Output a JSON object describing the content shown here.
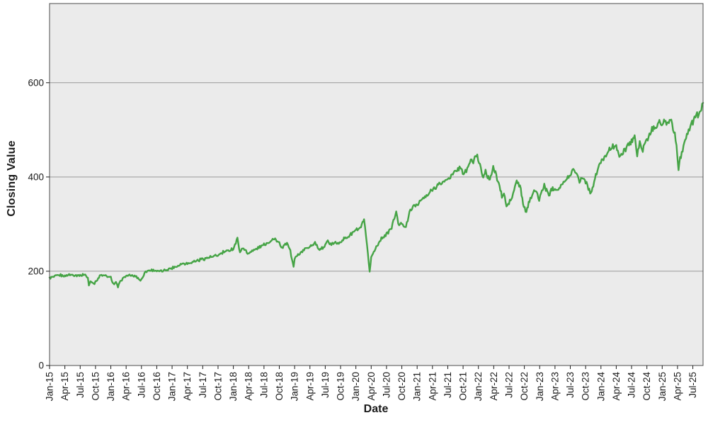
{
  "labels": {
    "x_axis_title": "Date",
    "y_axis_title": "Closing Value"
  },
  "colors": {
    "outer_bg": "#ffffff",
    "plot_bg": "#ebebeb",
    "gridline": "#9a9a9a",
    "plot_border": "#4d4d4d",
    "tick": "#1a1a1a",
    "text": "#1a1a1a",
    "line": "#46a446"
  },
  "chart_data": {
    "type": "line",
    "title": "",
    "xlabel": "Date",
    "ylabel": "Closing Value",
    "grid": "horizontal gridlines at y ticks, light gray plot background",
    "legend": "none",
    "ylim": [
      0,
      768
    ],
    "y_ticks": [
      0,
      200,
      400,
      600
    ],
    "x_months_range": [
      0,
      128
    ],
    "x_tick_every_months": 3,
    "x_tick_labels": [
      "Jan-15",
      "Apr-15",
      "Jul-15",
      "Oct-15",
      "Jan-16",
      "Apr-16",
      "Jul-16",
      "Oct-16",
      "Jan-17",
      "Apr-17",
      "Jul-17",
      "Oct-17",
      "Jan-18",
      "Apr-18",
      "Jul-18",
      "Oct-18",
      "Jan-19",
      "Apr-19",
      "Jul-19",
      "Oct-19",
      "Jan-20",
      "Apr-20",
      "Jul-20",
      "Oct-20",
      "Jan-21",
      "Apr-21",
      "Jul-21",
      "Oct-21",
      "Jan-22",
      "Apr-22",
      "Jul-22",
      "Oct-22",
      "Jan-23",
      "Apr-23",
      "Jul-23",
      "Oct-23",
      "Jan-24",
      "Apr-24",
      "Jul-24",
      "Oct-24",
      "Jan-25",
      "Apr-25",
      "Jul-25"
    ],
    "series": [
      {
        "name": "Closing Value",
        "color": "#46a446",
        "points_format": "[months_since_Jan2015, closing_value]",
        "points": [
          [
            0,
            186
          ],
          [
            1,
            189
          ],
          [
            2,
            192
          ],
          [
            3,
            190
          ],
          [
            4,
            193
          ],
          [
            5,
            192
          ],
          [
            6,
            191
          ],
          [
            7,
            193
          ],
          [
            7.5,
            185
          ],
          [
            7.7,
            170
          ],
          [
            8,
            179
          ],
          [
            8.8,
            174
          ],
          [
            9.2,
            180
          ],
          [
            10,
            192
          ],
          [
            11,
            190
          ],
          [
            12,
            186
          ],
          [
            12.5,
            173
          ],
          [
            13,
            175
          ],
          [
            13.4,
            167
          ],
          [
            14,
            181
          ],
          [
            15,
            190
          ],
          [
            16,
            191
          ],
          [
            17,
            189
          ],
          [
            17.8,
            180
          ],
          [
            18.3,
            188
          ],
          [
            18.6,
            198
          ],
          [
            19,
            200
          ],
          [
            20,
            203
          ],
          [
            21,
            201
          ],
          [
            22,
            199
          ],
          [
            23,
            204
          ],
          [
            24,
            207
          ],
          [
            25,
            211
          ],
          [
            26,
            216
          ],
          [
            27,
            217
          ],
          [
            28,
            220
          ],
          [
            29,
            223
          ],
          [
            30,
            226
          ],
          [
            31,
            228
          ],
          [
            32,
            231
          ],
          [
            33,
            234
          ],
          [
            34,
            240
          ],
          [
            35,
            244
          ],
          [
            36,
            248
          ],
          [
            36.8,
            268
          ],
          [
            37.3,
            242
          ],
          [
            38,
            250
          ],
          [
            38.8,
            238
          ],
          [
            39.5,
            242
          ],
          [
            40,
            245
          ],
          [
            41,
            250
          ],
          [
            42,
            256
          ],
          [
            43,
            262
          ],
          [
            43.7,
            269
          ],
          [
            44.5,
            266
          ],
          [
            45,
            260
          ],
          [
            45.4,
            248
          ],
          [
            46,
            255
          ],
          [
            46.5,
            258
          ],
          [
            47,
            250
          ],
          [
            47.8,
            209
          ],
          [
            48,
            228
          ],
          [
            49,
            238
          ],
          [
            50,
            247
          ],
          [
            51,
            253
          ],
          [
            52,
            260
          ],
          [
            52.9,
            243
          ],
          [
            53.5,
            250
          ],
          [
            54,
            258
          ],
          [
            54.5,
            264
          ],
          [
            55.2,
            254
          ],
          [
            55.6,
            260
          ],
          [
            56,
            262
          ],
          [
            56.3,
            256
          ],
          [
            57,
            264
          ],
          [
            58,
            270
          ],
          [
            59,
            278
          ],
          [
            60,
            287
          ],
          [
            61,
            292
          ],
          [
            61.6,
            310
          ],
          [
            62,
            270
          ],
          [
            62.7,
            200
          ],
          [
            63,
            230
          ],
          [
            64,
            252
          ],
          [
            65,
            270
          ],
          [
            66,
            278
          ],
          [
            67,
            292
          ],
          [
            67.9,
            326
          ],
          [
            68.3,
            298
          ],
          [
            69,
            302
          ],
          [
            69.8,
            293
          ],
          [
            70.5,
            325
          ],
          [
            71,
            335
          ],
          [
            72,
            342
          ],
          [
            73,
            352
          ],
          [
            74,
            360
          ],
          [
            75,
            374
          ],
          [
            76,
            382
          ],
          [
            77,
            388
          ],
          [
            78,
            396
          ],
          [
            79,
            406
          ],
          [
            80,
            416
          ],
          [
            80.6,
            421
          ],
          [
            81.1,
            403
          ],
          [
            82,
            422
          ],
          [
            82.5,
            437
          ],
          [
            83,
            430
          ],
          [
            83.6,
            448
          ],
          [
            84.3,
            428
          ],
          [
            84.8,
            402
          ],
          [
            85.4,
            412
          ],
          [
            85.8,
            395
          ],
          [
            86.4,
            400
          ],
          [
            86.9,
            418
          ],
          [
            87.5,
            405
          ],
          [
            88,
            385
          ],
          [
            88.6,
            360
          ],
          [
            89,
            365
          ],
          [
            89.5,
            337
          ],
          [
            90,
            345
          ],
          [
            90.6,
            355
          ],
          [
            91,
            372
          ],
          [
            91.5,
            394
          ],
          [
            92.3,
            372
          ],
          [
            92.9,
            335
          ],
          [
            93.4,
            327
          ],
          [
            94,
            350
          ],
          [
            94.9,
            373
          ],
          [
            95.4,
            365
          ],
          [
            95.9,
            352
          ],
          [
            96.3,
            365
          ],
          [
            96.9,
            382
          ],
          [
            97.5,
            370
          ],
          [
            97.8,
            362
          ],
          [
            98.4,
            376
          ],
          [
            99,
            378
          ],
          [
            99.5,
            374
          ],
          [
            100,
            382
          ],
          [
            101,
            390
          ],
          [
            102,
            405
          ],
          [
            102.6,
            418
          ],
          [
            103.3,
            406
          ],
          [
            103.8,
            392
          ],
          [
            104.4,
            398
          ],
          [
            105,
            392
          ],
          [
            105.9,
            367
          ],
          [
            106.5,
            382
          ],
          [
            107,
            403
          ],
          [
            107.8,
            428
          ],
          [
            108.5,
            440
          ],
          [
            109,
            448
          ],
          [
            110,
            460
          ],
          [
            111,
            470
          ],
          [
            111.6,
            437
          ],
          [
            112,
            447
          ],
          [
            113,
            463
          ],
          [
            114,
            477
          ],
          [
            114.6,
            487
          ],
          [
            115.1,
            446
          ],
          [
            115.6,
            472
          ],
          [
            116.2,
            458
          ],
          [
            117,
            480
          ],
          [
            118,
            500
          ],
          [
            119,
            512
          ],
          [
            119.6,
            519
          ],
          [
            119.9,
            508
          ],
          [
            120.5,
            517
          ],
          [
            121,
            512
          ],
          [
            121.6,
            523
          ],
          [
            122.3,
            498
          ],
          [
            122.8,
            470
          ],
          [
            123.2,
            412
          ],
          [
            123.5,
            440
          ],
          [
            124,
            452
          ],
          [
            124.5,
            478
          ],
          [
            125,
            495
          ],
          [
            125.7,
            510
          ],
          [
            126,
            516
          ],
          [
            126.5,
            528
          ],
          [
            127,
            533
          ],
          [
            127.5,
            543
          ],
          [
            128,
            553
          ]
        ]
      }
    ]
  }
}
